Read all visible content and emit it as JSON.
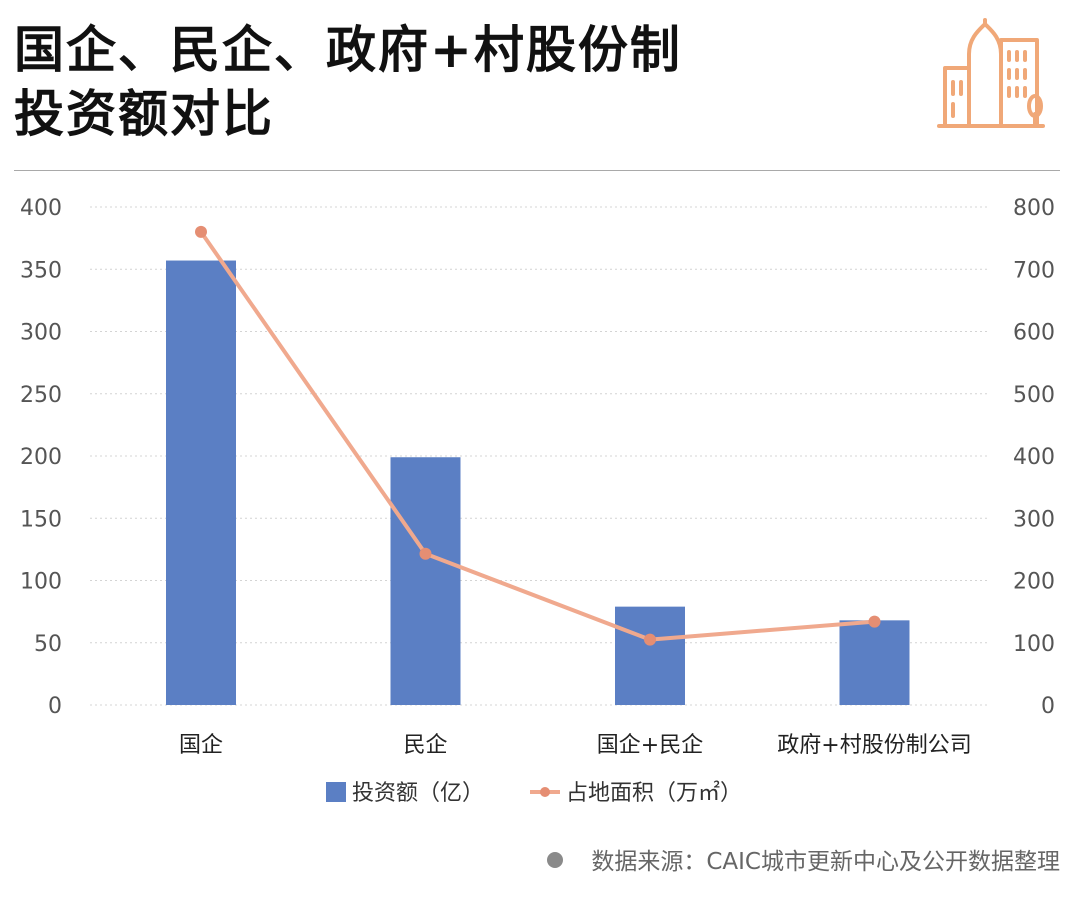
{
  "header": {
    "title_line1": "国企、民企、政府+村股份制",
    "title_line2": "投资额对比",
    "logo_icon": "city-buildings-icon"
  },
  "colors": {
    "bar": "#5b7fc4",
    "line": "#f0a98e",
    "marker": "#e58e73",
    "logo": "#f0a878",
    "grid": "#d4d4d4",
    "axis_text": "#555555"
  },
  "chart_data": {
    "type": "bar",
    "categories": [
      "国企",
      "民企",
      "国企+民企",
      "政府+村股份制公司"
    ],
    "series": [
      {
        "name": "投资额（亿）",
        "type": "bar",
        "axis": "left",
        "values": [
          357,
          199,
          79,
          68
        ]
      },
      {
        "name": "占地面积（万㎡）",
        "type": "line",
        "axis": "right",
        "values": [
          760,
          243,
          105,
          134
        ]
      }
    ],
    "left_axis": {
      "ylim": [
        0,
        400
      ],
      "ticks": [
        "0",
        "50",
        "100",
        "150",
        "200",
        "250",
        "300",
        "350",
        "400"
      ]
    },
    "right_axis": {
      "ylim": [
        0,
        800
      ],
      "ticks": [
        "0",
        "100",
        "200",
        "300",
        "400",
        "500",
        "600",
        "700",
        "800"
      ]
    },
    "grid": true,
    "legend_position": "bottom"
  },
  "source": {
    "text": "数据来源：CAIC城市更新中心及公开数据整理"
  }
}
